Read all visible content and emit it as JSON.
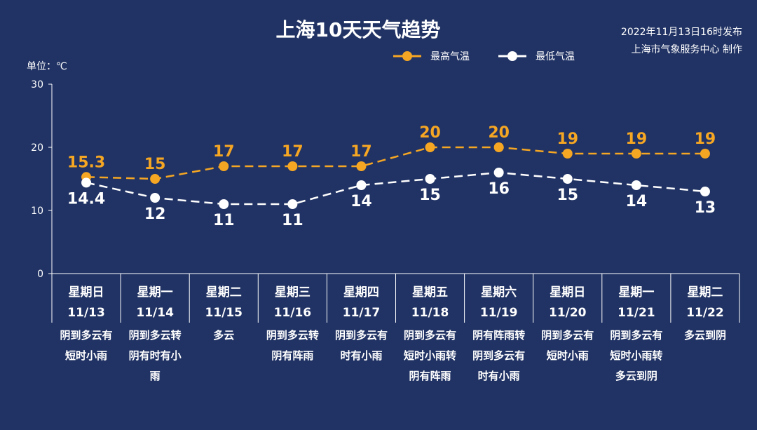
{
  "title": "上海10天天气趋势",
  "publish": {
    "line1": "2022年11月13日16时发布",
    "line2": "上海市气象服务中心 制作"
  },
  "colors": {
    "background": "#213364",
    "high": "#f5a623",
    "low": "#ffffff"
  },
  "chart_data": {
    "type": "line",
    "title": "上海10天天气趋势",
    "ylabel": "单位：℃",
    "ylim": [
      0,
      30
    ],
    "yticks": [
      "0",
      "10",
      "20",
      "30"
    ],
    "legend_position": "top-right",
    "grid": false,
    "categories": [
      {
        "weekday": "星期日",
        "date": "11/13",
        "weather": [
          "阴到多云有",
          "短时小雨"
        ]
      },
      {
        "weekday": "星期一",
        "date": "11/14",
        "weather": [
          "阴到多云转",
          "阴有时有小",
          "雨"
        ]
      },
      {
        "weekday": "星期二",
        "date": "11/15",
        "weather": [
          "多云"
        ]
      },
      {
        "weekday": "星期三",
        "date": "11/16",
        "weather": [
          "阴到多云转",
          "阴有阵雨"
        ]
      },
      {
        "weekday": "星期四",
        "date": "11/17",
        "weather": [
          "阴到多云有",
          "时有小雨"
        ]
      },
      {
        "weekday": "星期五",
        "date": "11/18",
        "weather": [
          "阴到多云有",
          "短时小雨转",
          "阴有阵雨"
        ]
      },
      {
        "weekday": "星期六",
        "date": "11/19",
        "weather": [
          "阴有阵雨转",
          "阴到多云有",
          "时有小雨"
        ]
      },
      {
        "weekday": "星期日",
        "date": "11/20",
        "weather": [
          "阴到多云有",
          "短时小雨"
        ]
      },
      {
        "weekday": "星期一",
        "date": "11/21",
        "weather": [
          "阴到多云有",
          "短时小雨转",
          "多云到阴"
        ]
      },
      {
        "weekday": "星期二",
        "date": "11/22",
        "weather": [
          "多云到阴"
        ]
      }
    ],
    "series": [
      {
        "name": "最高气温",
        "values": [
          15.3,
          15,
          17,
          17,
          17,
          20,
          20,
          19,
          19,
          19
        ],
        "labels": [
          "15.3",
          "15",
          "17",
          "17",
          "17",
          "20",
          "20",
          "19",
          "19",
          "19"
        ]
      },
      {
        "name": "最低气温",
        "values": [
          14.4,
          12,
          11,
          11,
          14,
          15,
          16,
          15,
          14,
          13
        ],
        "labels": [
          "14.4",
          "12",
          "11",
          "11",
          "14",
          "15",
          "16",
          "15",
          "14",
          "13"
        ]
      }
    ]
  }
}
